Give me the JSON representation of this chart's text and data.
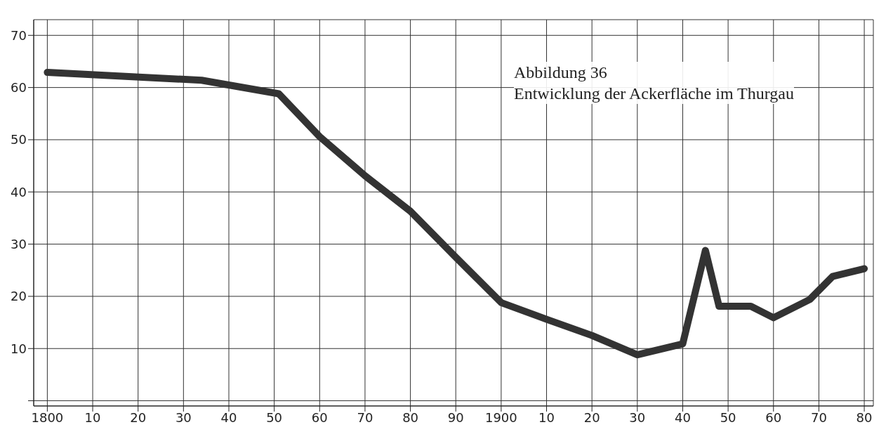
{
  "chart_data": {
    "type": "line",
    "title": "Abbildung 36",
    "subtitle": "Entwicklung der Ackerfläche im Thurgau",
    "x": [
      1800,
      1834,
      1851,
      1860,
      1870,
      1880,
      1890,
      1900,
      1910,
      1920,
      1930,
      1940,
      1945,
      1948,
      1955,
      1960,
      1968,
      1973,
      1980
    ],
    "series": [
      {
        "color": "#333333",
        "values": [
          62.9,
          61.4,
          58.8,
          50.6,
          43.1,
          36.3,
          27.5,
          18.8,
          15.6,
          12.5,
          8.8,
          10.9,
          28.8,
          18.1,
          18.1,
          15.9,
          19.4,
          23.8,
          25.3
        ]
      }
    ],
    "xlim": [
      1797,
      1982
    ],
    "xticks": [
      {
        "value": 1800,
        "label": "1800"
      },
      {
        "value": 1810,
        "label": "10"
      },
      {
        "value": 1820,
        "label": "20"
      },
      {
        "value": 1830,
        "label": "30"
      },
      {
        "value": 1840,
        "label": "40"
      },
      {
        "value": 1850,
        "label": "50"
      },
      {
        "value": 1860,
        "label": "60"
      },
      {
        "value": 1870,
        "label": "70"
      },
      {
        "value": 1880,
        "label": "80"
      },
      {
        "value": 1890,
        "label": "90"
      },
      {
        "value": 1900,
        "label": "1900"
      },
      {
        "value": 1910,
        "label": "10"
      },
      {
        "value": 1920,
        "label": "20"
      },
      {
        "value": 1930,
        "label": "30"
      },
      {
        "value": 1940,
        "label": "40"
      },
      {
        "value": 1950,
        "label": "50"
      },
      {
        "value": 1960,
        "label": "60"
      },
      {
        "value": 1970,
        "label": "70"
      },
      {
        "value": 1980,
        "label": "80"
      }
    ],
    "ylim": [
      -1,
      73
    ],
    "yticks": [
      {
        "value": 0,
        "label": null
      },
      10,
      20,
      30,
      40,
      50,
      60,
      70
    ],
    "grid": true,
    "marker": "none",
    "line_style": "solid"
  }
}
